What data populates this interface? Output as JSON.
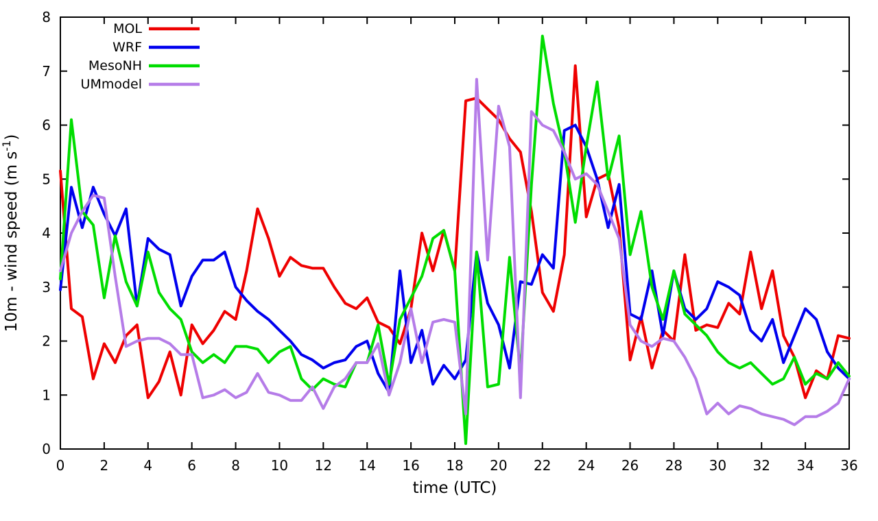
{
  "figure": {
    "background": "#ffffff",
    "border_color": "#000000",
    "xlabel": "time (UTC)",
    "ylabel": {
      "prefix": "10m - wind speed  (m s",
      "sup": "-1",
      "suffix": ")"
    }
  },
  "chart_data": {
    "type": "line",
    "title": "",
    "xlabel": "time (UTC)",
    "ylabel": "10m - wind speed (m s^-1)",
    "xlim": [
      0,
      36
    ],
    "ylim": [
      0,
      8
    ],
    "grid": false,
    "legend_position": "top-left-inside",
    "xticks": [
      0,
      2,
      4,
      6,
      8,
      10,
      12,
      14,
      16,
      18,
      20,
      22,
      24,
      26,
      28,
      30,
      32,
      34,
      36
    ],
    "yticks": [
      0,
      1,
      2,
      3,
      4,
      5,
      6,
      7,
      8
    ],
    "x": [
      0,
      0.5,
      1,
      1.5,
      2,
      2.5,
      3,
      3.5,
      4,
      4.5,
      5,
      5.5,
      6,
      6.5,
      7,
      7.5,
      8,
      8.5,
      9,
      9.5,
      10,
      10.5,
      11,
      11.5,
      12,
      12.5,
      13,
      13.5,
      14,
      14.5,
      15,
      15.5,
      16,
      16.5,
      17,
      17.5,
      18,
      18.5,
      19,
      19.5,
      20,
      20.5,
      21,
      21.5,
      22,
      22.5,
      23,
      23.5,
      24,
      24.5,
      25,
      25.5,
      26,
      26.5,
      27,
      27.5,
      28,
      28.5,
      29,
      29.5,
      30,
      30.5,
      31,
      31.5,
      32,
      32.5,
      33,
      33.5,
      34,
      34.5,
      35,
      35.5,
      36
    ],
    "series": [
      {
        "name": "MOL",
        "color": "#ee0000",
        "values": [
          5.15,
          2.6,
          2.45,
          1.3,
          1.95,
          1.6,
          2.1,
          2.3,
          0.95,
          1.25,
          1.8,
          1.0,
          2.3,
          1.95,
          2.2,
          2.55,
          2.4,
          3.3,
          4.45,
          3.9,
          3.2,
          3.55,
          3.4,
          3.35,
          3.35,
          3.0,
          2.7,
          2.6,
          2.8,
          2.35,
          2.25,
          1.95,
          2.6,
          4.0,
          3.3,
          4.05,
          3.3,
          6.45,
          6.5,
          6.3,
          6.1,
          5.75,
          5.5,
          4.4,
          2.9,
          2.55,
          3.6,
          7.1,
          4.3,
          5.0,
          5.1,
          4.1,
          1.65,
          2.45,
          1.5,
          2.2,
          2.0,
          3.6,
          2.2,
          2.3,
          2.25,
          2.7,
          2.5,
          3.65,
          2.6,
          3.3,
          2.1,
          1.7,
          0.95,
          1.45,
          1.3,
          2.1,
          2.05
        ]
      },
      {
        "name": "WRF",
        "color": "#0000ee",
        "values": [
          2.95,
          4.85,
          4.1,
          4.85,
          4.35,
          3.95,
          4.45,
          2.65,
          3.9,
          3.7,
          3.6,
          2.65,
          3.2,
          3.5,
          3.5,
          3.65,
          3.0,
          2.75,
          2.55,
          2.4,
          2.2,
          2.0,
          1.75,
          1.65,
          1.5,
          1.6,
          1.65,
          1.9,
          2.0,
          1.4,
          1.05,
          3.3,
          1.6,
          2.2,
          1.2,
          1.55,
          1.3,
          1.65,
          3.65,
          2.7,
          2.3,
          1.5,
          3.1,
          3.05,
          3.6,
          3.35,
          5.9,
          6.0,
          5.6,
          5.0,
          4.1,
          4.9,
          2.5,
          2.4,
          3.3,
          2.1,
          3.3,
          2.6,
          2.4,
          2.6,
          3.1,
          3.0,
          2.85,
          2.2,
          2.0,
          2.4,
          1.6,
          2.1,
          2.6,
          2.4,
          1.8,
          1.5,
          1.3
        ]
      },
      {
        "name": "MesoNH",
        "color": "#00dd00",
        "values": [
          3.15,
          6.1,
          4.4,
          4.15,
          2.8,
          3.95,
          3.1,
          2.65,
          3.65,
          2.9,
          2.6,
          2.4,
          1.8,
          1.6,
          1.75,
          1.6,
          1.9,
          1.9,
          1.85,
          1.6,
          1.8,
          1.9,
          1.3,
          1.1,
          1.3,
          1.2,
          1.15,
          1.6,
          1.6,
          2.3,
          1.2,
          2.4,
          2.8,
          3.2,
          3.9,
          4.05,
          3.3,
          0.1,
          3.65,
          1.15,
          1.2,
          3.55,
          1.4,
          4.9,
          7.65,
          6.4,
          5.5,
          4.2,
          5.6,
          6.8,
          5.0,
          5.8,
          3.6,
          4.4,
          3.0,
          2.4,
          3.3,
          2.5,
          2.3,
          2.1,
          1.8,
          1.6,
          1.5,
          1.6,
          1.4,
          1.2,
          1.3,
          1.7,
          1.2,
          1.4,
          1.3,
          1.6,
          1.35
        ]
      },
      {
        "name": "UMmodel",
        "color": "#b57ce8",
        "values": [
          3.3,
          4.0,
          4.4,
          4.7,
          4.65,
          3.2,
          1.9,
          2.0,
          2.05,
          2.05,
          1.95,
          1.75,
          1.75,
          0.95,
          1.0,
          1.1,
          0.95,
          1.05,
          1.4,
          1.05,
          1.0,
          0.9,
          0.9,
          1.15,
          0.75,
          1.15,
          1.3,
          1.6,
          1.6,
          1.95,
          1.0,
          1.6,
          2.6,
          1.6,
          2.35,
          2.4,
          2.35,
          0.65,
          6.85,
          3.5,
          6.35,
          5.6,
          0.95,
          6.25,
          6.0,
          5.9,
          5.5,
          5.0,
          5.1,
          4.9,
          4.4,
          3.9,
          2.3,
          2.0,
          1.9,
          2.05,
          2.0,
          1.7,
          1.3,
          0.65,
          0.85,
          0.65,
          0.8,
          0.75,
          0.65,
          0.6,
          0.55,
          0.45,
          0.6,
          0.6,
          0.7,
          0.85,
          1.3
        ]
      }
    ]
  }
}
